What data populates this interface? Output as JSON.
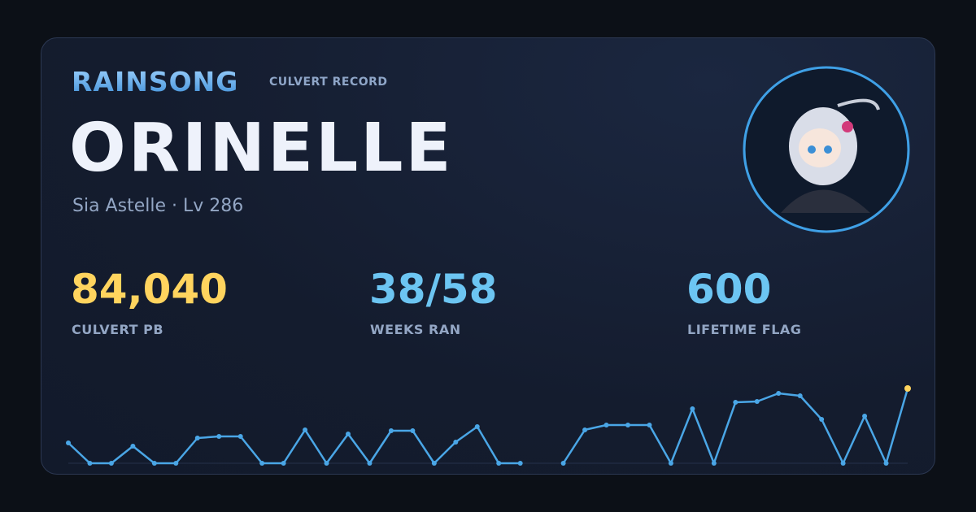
{
  "brand": {
    "title": "RAINSONG",
    "subtitle": "CULVERT RECORD"
  },
  "profile": {
    "name": "ORINELLE",
    "subtitle": "Sia Astelle · Lv 286"
  },
  "stats": [
    {
      "value": "84,040",
      "label": "CULVERT PB",
      "color": "#ffd45e"
    },
    {
      "value": "38/58",
      "label": "WEEKS RAN",
      "color": "#6cc5f2"
    },
    {
      "value": "600",
      "label": "LIFETIME FLAG",
      "color": "#6cc5f2"
    }
  ],
  "sparkline": {
    "color": "#4aa6e6",
    "highlight_color": "#ffd45e",
    "values": [
      22800,
      0,
      0,
      19200,
      0,
      0,
      28300,
      30100,
      30100,
      0,
      0,
      37500,
      0,
      32900,
      0,
      36500,
      36500,
      0,
      23800,
      41100,
      0,
      0,
      null,
      0,
      37500,
      42900,
      42900,
      42900,
      0,
      61200,
      0,
      68500,
      69400,
      78600,
      75800,
      49300,
      0,
      53000,
      0,
      84040
    ]
  }
}
